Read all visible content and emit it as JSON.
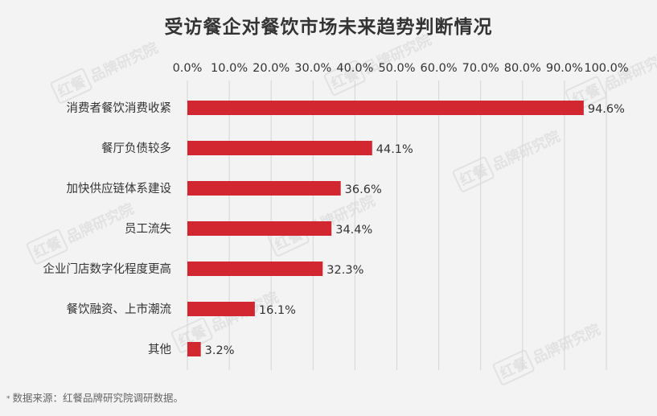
{
  "title": "受访餐企对餐饮市场未来趋势判断情况",
  "footnote": {
    "marker": "*",
    "text": "数据来源：红餐品牌研究院调研数据。"
  },
  "watermark": {
    "mark": "红餐",
    "text": "品牌研究院"
  },
  "colors": {
    "bar": "#d22630",
    "grid": "#d5d5d5",
    "text": "#333333"
  },
  "chart_data": {
    "type": "bar",
    "orientation": "horizontal",
    "title": "受访餐企对餐饮市场未来趋势判断情况",
    "categories": [
      "消费者餐饮消费收紧",
      "餐厅负债较多",
      "加快供应链体系建设",
      "员工流失",
      "企业门店数字化程度更高",
      "餐饮融资、上市潮流",
      "其他"
    ],
    "values": [
      94.6,
      44.1,
      36.6,
      34.4,
      32.3,
      16.1,
      3.2
    ],
    "value_labels": [
      "94.6%",
      "44.1%",
      "36.6%",
      "34.4%",
      "32.3%",
      "16.1%",
      "3.2%"
    ],
    "xlim": [
      0,
      100
    ],
    "ticks": [
      0,
      10,
      20,
      30,
      40,
      50,
      60,
      70,
      80,
      90,
      100
    ],
    "tick_labels": [
      "0.0%",
      "10.0%",
      "20.0%",
      "30.0%",
      "40.0%",
      "50.0%",
      "60.0%",
      "70.0%",
      "80.0%",
      "90.0%",
      "100.0%"
    ],
    "axis_position": "top",
    "grid": true,
    "legend": "none"
  }
}
